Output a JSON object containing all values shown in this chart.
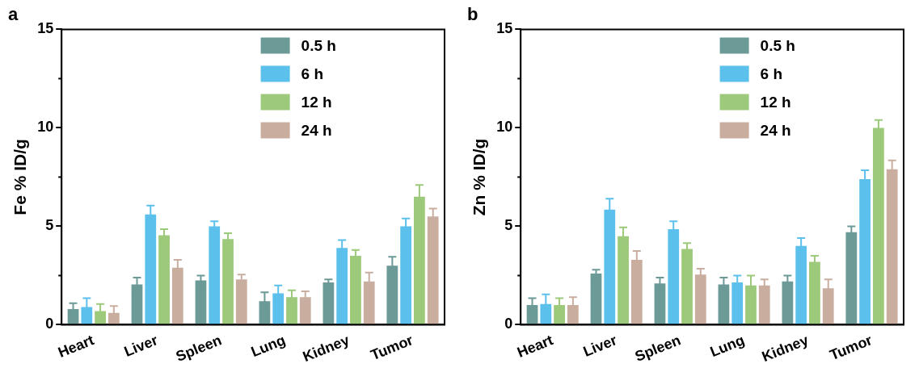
{
  "chart_data": [
    {
      "type": "bar",
      "title": "a",
      "ylabel": "Fe % ID/g",
      "categories": [
        "Heart",
        "Liver",
        "Spleen",
        "Lung",
        "Kidney",
        "Tumor"
      ],
      "ylim": [
        0,
        15
      ],
      "yticks": [
        0,
        5,
        10,
        15
      ],
      "grid": false,
      "legend": "top",
      "series": [
        {
          "name": "0.5 h",
          "color": "#6b9a97",
          "values": [
            0.8,
            2.05,
            2.25,
            1.2,
            2.15,
            3.0
          ],
          "errors": [
            0.3,
            0.35,
            0.25,
            0.45,
            0.15,
            0.45
          ]
        },
        {
          "name": "6 h",
          "color": "#5bc0eb",
          "values": [
            0.9,
            5.6,
            5.0,
            1.6,
            3.9,
            5.0
          ],
          "errors": [
            0.45,
            0.45,
            0.25,
            0.4,
            0.4,
            0.4
          ]
        },
        {
          "name": "12 h",
          "color": "#9dc97a",
          "values": [
            0.7,
            4.55,
            4.35,
            1.4,
            3.5,
            6.5
          ],
          "errors": [
            0.35,
            0.3,
            0.3,
            0.35,
            0.3,
            0.6
          ]
        },
        {
          "name": "24 h",
          "color": "#c9aea0",
          "values": [
            0.6,
            2.9,
            2.3,
            1.4,
            2.2,
            5.5
          ],
          "errors": [
            0.35,
            0.4,
            0.25,
            0.3,
            0.45,
            0.4
          ]
        }
      ]
    },
    {
      "type": "bar",
      "title": "b",
      "ylabel": "Zn % ID/g",
      "categories": [
        "Heart",
        "Liver",
        "Spleen",
        "Lung",
        "Kidney",
        "Tumor"
      ],
      "ylim": [
        0,
        15
      ],
      "yticks": [
        0,
        5,
        10,
        15
      ],
      "grid": false,
      "legend": "top",
      "series": [
        {
          "name": "0.5 h",
          "color": "#6b9a97",
          "values": [
            1.0,
            2.6,
            2.1,
            2.05,
            2.2,
            4.7
          ],
          "errors": [
            0.35,
            0.2,
            0.3,
            0.35,
            0.3,
            0.3
          ]
        },
        {
          "name": "6 h",
          "color": "#5bc0eb",
          "values": [
            1.05,
            5.85,
            4.85,
            2.15,
            4.0,
            7.4
          ],
          "errors": [
            0.5,
            0.55,
            0.4,
            0.35,
            0.4,
            0.45
          ]
        },
        {
          "name": "12 h",
          "color": "#9dc97a",
          "values": [
            1.0,
            4.5,
            3.85,
            2.0,
            3.2,
            10.0
          ],
          "errors": [
            0.35,
            0.45,
            0.3,
            0.5,
            0.3,
            0.4
          ]
        },
        {
          "name": "24 h",
          "color": "#c9aea0",
          "values": [
            1.0,
            3.3,
            2.55,
            2.0,
            1.85,
            7.9
          ],
          "errors": [
            0.4,
            0.45,
            0.3,
            0.3,
            0.45,
            0.45
          ]
        }
      ]
    }
  ]
}
